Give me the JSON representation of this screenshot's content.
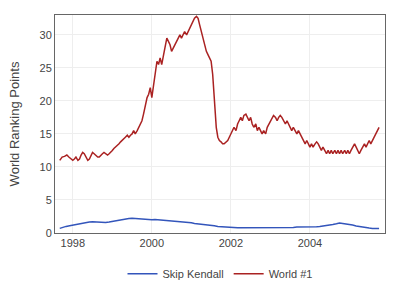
{
  "chart_data": {
    "type": "line",
    "ylabel": "World Ranking Points",
    "xlim": [
      1997.55,
      2005.9
    ],
    "xticks": [
      1998,
      2000,
      2002,
      2004
    ],
    "ylim": [
      0,
      33
    ],
    "yticks": [
      0,
      5,
      10,
      15,
      20,
      25,
      30
    ],
    "grid": true,
    "legend": "bottom",
    "series": [
      {
        "name": "Skip Kendall",
        "color": "#3355bb",
        "x": [
          1997.67,
          1997.75,
          1997.83,
          1997.92,
          1998.0,
          1998.08,
          1998.17,
          1998.25,
          1998.33,
          1998.42,
          1998.5,
          1998.58,
          1998.67,
          1998.75,
          1998.83,
          1998.92,
          1999.0,
          1999.08,
          1999.17,
          1999.25,
          1999.33,
          1999.42,
          1999.5,
          1999.58,
          1999.67,
          1999.75,
          1999.83,
          1999.92,
          2000.0,
          2000.08,
          2000.17,
          2000.25,
          2000.33,
          2000.42,
          2000.5,
          2000.58,
          2000.67,
          2000.75,
          2000.83,
          2000.92,
          2001.0,
          2001.08,
          2001.17,
          2001.25,
          2001.33,
          2001.42,
          2001.5,
          2001.58,
          2001.67,
          2001.75,
          2001.83,
          2001.92,
          2002.0,
          2002.08,
          2002.17,
          2002.25,
          2002.33,
          2002.42,
          2002.5,
          2002.58,
          2002.67,
          2002.75,
          2002.83,
          2002.92,
          2003.0,
          2003.08,
          2003.17,
          2003.25,
          2003.33,
          2003.42,
          2003.5,
          2003.58,
          2003.67,
          2003.75,
          2003.83,
          2003.92,
          2004.0,
          2004.08,
          2004.17,
          2004.25,
          2004.33,
          2004.42,
          2004.5,
          2004.58,
          2004.67,
          2004.75,
          2004.83,
          2004.92,
          2005.0,
          2005.08,
          2005.17,
          2005.25,
          2005.33,
          2005.42,
          2005.5,
          2005.58,
          2005.67,
          2005.75
        ],
        "values": [
          0.7,
          0.9,
          1.0,
          1.1,
          1.2,
          1.3,
          1.4,
          1.5,
          1.6,
          1.65,
          1.7,
          1.65,
          1.6,
          1.55,
          1.6,
          1.65,
          1.75,
          1.85,
          1.95,
          2.05,
          2.1,
          2.2,
          2.25,
          2.2,
          2.15,
          2.1,
          2.1,
          2.05,
          2.0,
          2.05,
          2.0,
          1.95,
          2.0,
          1.9,
          1.85,
          1.8,
          1.75,
          1.7,
          1.65,
          1.6,
          1.55,
          1.45,
          1.4,
          1.35,
          1.3,
          1.25,
          1.15,
          1.1,
          1.0,
          0.95,
          0.95,
          0.9,
          0.85,
          0.85,
          0.8,
          0.8,
          0.8,
          0.85,
          0.85,
          0.85,
          0.8,
          0.8,
          0.75,
          0.75,
          0.75,
          0.75,
          0.75,
          0.8,
          0.8,
          0.8,
          0.85,
          0.85,
          0.9,
          0.9,
          0.85,
          0.85,
          0.9,
          0.95,
          0.95,
          1.0,
          1.05,
          1.1,
          1.2,
          1.3,
          1.4,
          1.5,
          1.45,
          1.4,
          1.3,
          1.2,
          1.05,
          0.95,
          0.85,
          0.8,
          0.75,
          0.7,
          0.7,
          0.7
        ]
      },
      {
        "name": "World #1",
        "color": "#aa2222",
        "x": [
          1997.67,
          1997.73,
          1997.79,
          1997.85,
          1997.9,
          1997.96,
          1998.0,
          1998.04,
          1998.08,
          1998.13,
          1998.17,
          1998.21,
          1998.25,
          1998.29,
          1998.33,
          1998.38,
          1998.42,
          1998.46,
          1998.5,
          1998.54,
          1998.58,
          1998.63,
          1998.67,
          1998.71,
          1998.75,
          1998.79,
          1998.83,
          1998.88,
          1998.92,
          1998.96,
          1999.0,
          1999.04,
          1999.08,
          1999.13,
          1999.17,
          1999.21,
          1999.25,
          1999.29,
          1999.33,
          1999.38,
          1999.42,
          1999.46,
          1999.5,
          1999.54,
          1999.58,
          1999.63,
          1999.67,
          1999.71,
          1999.75,
          1999.79,
          1999.83,
          1999.88,
          1999.92,
          1999.96,
          2000.0,
          2000.04,
          2000.08,
          2000.13,
          2000.17,
          2000.21,
          2000.25,
          2000.29,
          2000.33,
          2000.38,
          2000.42,
          2000.46,
          2000.5,
          2000.54,
          2000.58,
          2000.63,
          2000.67,
          2000.71,
          2000.75,
          2000.79,
          2000.83,
          2000.88,
          2000.92,
          2000.96,
          2001.0,
          2001.04,
          2001.08,
          2001.13,
          2001.17,
          2001.21,
          2001.25,
          2001.29,
          2001.33,
          2001.38,
          2001.42,
          2001.46,
          2001.5,
          2001.54,
          2001.58,
          2001.63,
          2001.67,
          2001.71,
          2001.75,
          2001.79,
          2001.83,
          2001.88,
          2001.92,
          2001.96,
          2002.0,
          2002.04,
          2002.08,
          2002.13,
          2002.17,
          2002.21,
          2002.25,
          2002.29,
          2002.33,
          2002.38,
          2002.42,
          2002.46,
          2002.5,
          2002.54,
          2002.58,
          2002.63,
          2002.67,
          2002.71,
          2002.75,
          2002.79,
          2002.83,
          2002.88,
          2002.92,
          2002.96,
          2003.0,
          2003.04,
          2003.08,
          2003.13,
          2003.17,
          2003.21,
          2003.25,
          2003.29,
          2003.33,
          2003.38,
          2003.42,
          2003.46,
          2003.5,
          2003.54,
          2003.58,
          2003.63,
          2003.67,
          2003.71,
          2003.75,
          2003.79,
          2003.83,
          2003.88,
          2003.92,
          2003.96,
          2004.0,
          2004.04,
          2004.08,
          2004.13,
          2004.17,
          2004.21,
          2004.25,
          2004.29,
          2004.33,
          2004.38,
          2004.42,
          2004.46,
          2004.5,
          2004.54,
          2004.58,
          2004.63,
          2004.67,
          2004.71,
          2004.75,
          2004.79,
          2004.83,
          2004.88,
          2004.92,
          2004.96,
          2005.0,
          2005.04,
          2005.08,
          2005.13,
          2005.17,
          2005.21,
          2005.25,
          2005.29,
          2005.33,
          2005.38,
          2005.42,
          2005.46,
          2005.5,
          2005.54,
          2005.58,
          2005.63,
          2005.67,
          2005.71,
          2005.75
        ],
        "values": [
          11.0,
          11.5,
          11.6,
          11.8,
          11.5,
          11.2,
          11.0,
          11.2,
          11.5,
          11.0,
          11.2,
          11.8,
          12.2,
          12.0,
          11.5,
          11.0,
          11.2,
          11.8,
          12.2,
          12.0,
          11.8,
          11.5,
          11.5,
          11.8,
          12.0,
          12.2,
          12.0,
          11.8,
          12.0,
          12.2,
          12.5,
          12.8,
          13.0,
          13.2,
          13.5,
          13.8,
          14.0,
          14.2,
          14.5,
          14.8,
          14.5,
          14.8,
          15.0,
          15.5,
          15.0,
          15.5,
          16.0,
          16.5,
          17.0,
          18.0,
          19.0,
          20.5,
          21.0,
          22.0,
          20.5,
          22.0,
          24.0,
          26.0,
          25.5,
          26.5,
          25.5,
          27.0,
          28.0,
          29.5,
          29.0,
          28.5,
          27.5,
          28.0,
          28.5,
          29.0,
          29.5,
          30.0,
          29.5,
          30.0,
          30.5,
          30.0,
          30.5,
          31.0,
          31.5,
          32.0,
          32.5,
          32.8,
          32.5,
          31.5,
          30.5,
          29.5,
          28.5,
          27.5,
          27.0,
          26.5,
          26.0,
          24.0,
          20.0,
          16.0,
          14.5,
          14.0,
          13.8,
          13.5,
          13.5,
          13.8,
          14.0,
          14.5,
          15.0,
          15.5,
          16.0,
          15.5,
          16.5,
          17.0,
          17.5,
          17.0,
          17.8,
          18.0,
          17.5,
          17.0,
          17.5,
          16.5,
          16.0,
          16.5,
          15.5,
          16.0,
          15.5,
          15.0,
          15.5,
          15.0,
          16.0,
          16.5,
          17.0,
          17.5,
          17.8,
          17.5,
          17.0,
          17.5,
          17.8,
          17.5,
          17.0,
          16.5,
          17.0,
          16.5,
          16.0,
          15.5,
          16.0,
          15.5,
          15.0,
          15.5,
          15.0,
          14.5,
          14.0,
          13.5,
          14.0,
          13.5,
          13.0,
          13.5,
          13.0,
          13.5,
          13.8,
          13.5,
          13.0,
          12.5,
          13.0,
          12.5,
          12.0,
          12.5,
          12.0,
          12.5,
          12.0,
          12.5,
          12.0,
          12.5,
          12.0,
          12.5,
          12.0,
          12.5,
          12.0,
          12.5,
          12.0,
          12.5,
          13.0,
          13.5,
          13.0,
          12.5,
          12.0,
          12.5,
          13.0,
          13.5,
          13.0,
          13.5,
          14.0,
          13.5,
          14.0,
          14.5,
          15.0,
          15.5,
          16.0
        ]
      }
    ]
  }
}
